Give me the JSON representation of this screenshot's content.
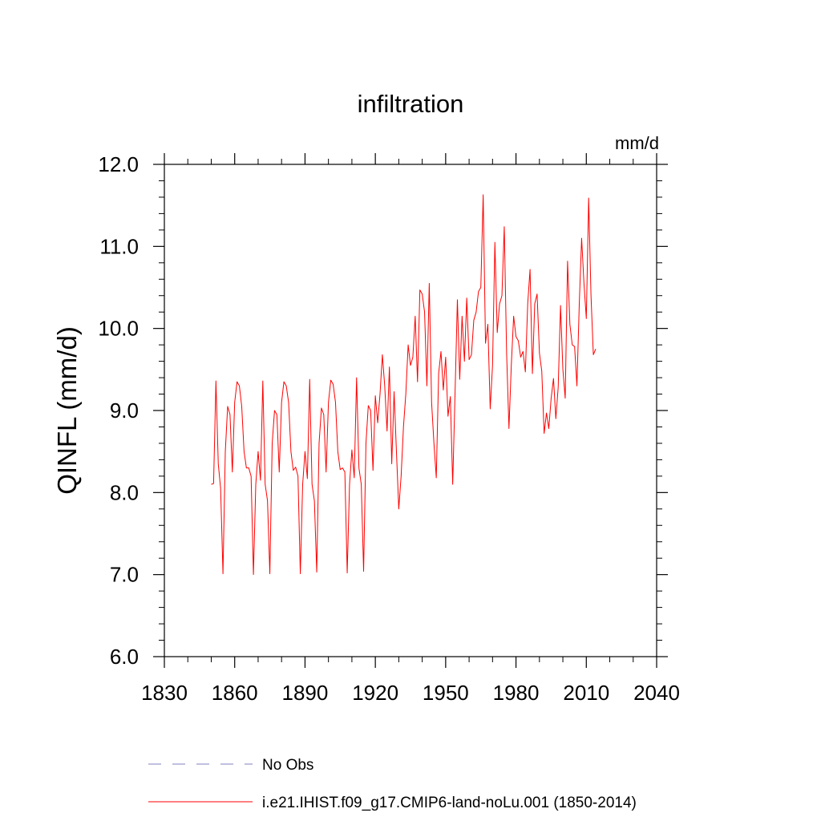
{
  "chart_data": {
    "type": "line",
    "title": "infiltration",
    "units_label": "mm/d",
    "ylabel": "QINFL  (mm/d)",
    "xlabel": "",
    "xlim": [
      1830,
      2040
    ],
    "ylim": [
      6.0,
      12.0
    ],
    "x_ticks": [
      1830,
      1860,
      1890,
      1920,
      1950,
      1980,
      2010,
      2040
    ],
    "y_ticks": [
      6.0,
      7.0,
      8.0,
      9.0,
      10.0,
      11.0,
      12.0
    ],
    "x_tick_labels": [
      "1830",
      "1860",
      "1890",
      "1920",
      "1950",
      "1980",
      "2010",
      "2040"
    ],
    "y_tick_labels": [
      "6.0",
      "7.0",
      "8.0",
      "9.0",
      "10.0",
      "11.0",
      "12.0"
    ],
    "grid": false,
    "legend_placement": "bottom",
    "legend": [
      {
        "label": "No Obs",
        "color": "#8080c0",
        "style": "dashed"
      },
      {
        "label": "i.e21.IHIST.f09_g17.CMIP6-land-noLu.001 (1850-2014)",
        "color": "#ff0000",
        "style": "solid"
      }
    ],
    "series": [
      {
        "name": "i.e21.IHIST.f09_g17.CMIP6-land-noLu.001 (1850-2014)",
        "color": "#ff0000",
        "x": [
          1850,
          1851,
          1852,
          1853,
          1854,
          1855,
          1856,
          1857,
          1858,
          1859,
          1860,
          1861,
          1862,
          1863,
          1864,
          1865,
          1866,
          1867,
          1868,
          1869,
          1870,
          1871,
          1872,
          1873,
          1874,
          1875,
          1876,
          1877,
          1878,
          1879,
          1880,
          1881,
          1882,
          1883,
          1884,
          1885,
          1886,
          1887,
          1888,
          1889,
          1890,
          1891,
          1892,
          1893,
          1894,
          1895,
          1896,
          1897,
          1898,
          1899,
          1900,
          1901,
          1902,
          1903,
          1904,
          1905,
          1906,
          1907,
          1908,
          1909,
          1910,
          1911,
          1912,
          1913,
          1914,
          1915,
          1916,
          1917,
          1918,
          1919,
          1920,
          1921,
          1922,
          1923,
          1924,
          1925,
          1926,
          1927,
          1928,
          1929,
          1930,
          1931,
          1932,
          1933,
          1934,
          1935,
          1936,
          1937,
          1938,
          1939,
          1940,
          1941,
          1942,
          1943,
          1944,
          1945,
          1946,
          1947,
          1948,
          1949,
          1950,
          1951,
          1952,
          1953,
          1954,
          1955,
          1956,
          1957,
          1958,
          1959,
          1960,
          1961,
          1962,
          1963,
          1964,
          1965,
          1966,
          1967,
          1968,
          1969,
          1970,
          1971,
          1972,
          1973,
          1974,
          1975,
          1976,
          1977,
          1978,
          1979,
          1980,
          1981,
          1982,
          1983,
          1984,
          1985,
          1986,
          1987,
          1988,
          1989,
          1990,
          1991,
          1992,
          1993,
          1994,
          1995,
          1996,
          1997,
          1998,
          1999,
          2000,
          2001,
          2002,
          2003,
          2004,
          2005,
          2006,
          2007,
          2008,
          2009,
          2010,
          2011,
          2012,
          2013,
          2014
        ],
        "values": [
          8.1,
          8.11,
          9.36,
          8.35,
          8.05,
          7.01,
          8.5,
          9.05,
          8.95,
          8.25,
          9.1,
          9.35,
          9.3,
          9.05,
          8.5,
          8.3,
          8.3,
          8.2,
          7.0,
          8.1,
          8.5,
          8.15,
          9.36,
          8.1,
          7.9,
          7.01,
          8.6,
          9.0,
          8.95,
          8.25,
          9.1,
          9.35,
          9.3,
          9.1,
          8.5,
          8.27,
          8.31,
          8.2,
          7.01,
          8.1,
          8.5,
          8.17,
          9.38,
          8.1,
          7.9,
          7.03,
          8.6,
          9.03,
          8.95,
          8.25,
          9.1,
          9.37,
          9.32,
          9.1,
          8.5,
          8.28,
          8.3,
          8.25,
          7.02,
          8.1,
          8.52,
          8.18,
          9.4,
          8.3,
          8.1,
          7.04,
          8.6,
          9.06,
          9.0,
          8.27,
          9.18,
          8.85,
          9.2,
          9.68,
          9.3,
          8.75,
          9.53,
          8.35,
          9.23,
          8.5,
          7.8,
          8.2,
          8.8,
          9.2,
          9.8,
          9.55,
          9.65,
          10.15,
          9.35,
          10.47,
          10.42,
          10.2,
          9.3,
          10.55,
          9.1,
          8.6,
          8.18,
          9.45,
          9.72,
          9.25,
          9.65,
          8.93,
          9.17,
          8.1,
          9.2,
          10.35,
          9.38,
          10.15,
          9.6,
          10.37,
          9.62,
          9.68,
          10.1,
          10.2,
          10.45,
          10.5,
          11.63,
          9.82,
          10.05,
          9.02,
          9.55,
          11.05,
          9.95,
          10.3,
          10.4,
          11.24,
          9.7,
          8.78,
          9.55,
          10.15,
          9.9,
          9.85,
          9.65,
          9.72,
          9.47,
          10.3,
          10.72,
          9.45,
          10.3,
          10.42,
          9.7,
          9.48,
          8.72,
          8.97,
          8.78,
          9.15,
          9.39,
          8.9,
          9.28,
          10.28,
          9.5,
          9.15,
          10.82,
          10.05,
          9.8,
          9.78,
          9.3,
          10.3,
          11.1,
          10.55,
          10.12,
          11.59,
          10.4,
          9.68,
          9.75
        ]
      }
    ]
  }
}
